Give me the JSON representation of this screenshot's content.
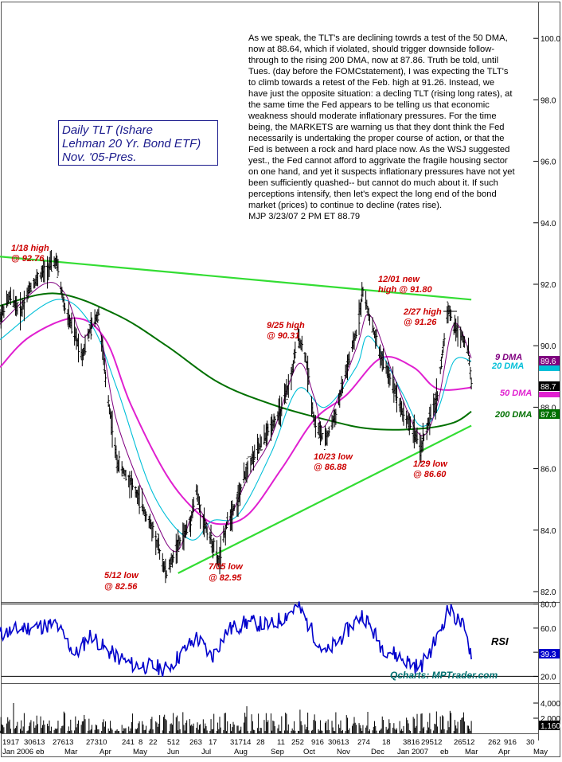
{
  "title_box": {
    "line1": "Daily TLT (Ishare",
    "line2": "Lehman 20 Yr. Bond ETF)",
    "line3": "Nov. '05-Pres."
  },
  "commentary": {
    "text": "As we speak, the TLT's are declining towrds a test of the 50 DMA, now at 88.64, which if violated, should trigger downside follow-through to the rising 200 DMA, now at 87.86. Truth be told, until Tues. (day before the FOMCstatement), I was expecting the TLT's to climb towards a retest of the Feb. high at 91.26. Instead, we have just the opposite situation: a decling TLT (rising long rates), at the same time the Fed appears to be telling us that economic weakness should moderate inflationary pressures. For the time being, the MARKETS are warning us that they dont think the Fed necessarily is undertaking the proper course of action, or that the Fed is between a rock and hard place now. As the WSJ suggested yest., the Fed cannot afford to aggrivate the fragile housing sector on one hand, and yet it suspects inflationary pressures have not yet been sufficiently quashed-- but cannot do much about it. If such perceptions intensify, then let's expect the long end of the bond market (prices) to continue to decline (rates rise).",
    "signature": "MJP  3/23/07 2  PM ET 88.79"
  },
  "credit": "Qcharts: MPTrader.com",
  "colors": {
    "price_bars": "#000000",
    "dma9": "#800080",
    "dma20": "#00bfd8",
    "dma50": "#e020d0",
    "dma200": "#007000",
    "trendline": "#33dd33",
    "rsi": "#0000cc",
    "volume": "#000000",
    "annotation": "#cc0000"
  },
  "chart_data": [
    {
      "type": "line",
      "role": "price",
      "y_ticks": [
        "82.0",
        "84.0",
        "86.0",
        "88.0",
        "90.0",
        "92.0",
        "94.0",
        "96.0",
        "98.0",
        "100.0"
      ],
      "ylim": [
        82,
        101
      ],
      "x_day_labels": [
        "1917",
        "30613",
        "27613",
        "27310",
        "241",
        "8",
        "22",
        "512",
        "263",
        "17",
        "31714",
        "28",
        "11",
        "252",
        "916",
        "30613",
        "274",
        "18",
        "3816",
        "29512",
        "26512",
        "262",
        "916",
        "30"
      ],
      "x_month_labels": [
        "Jan 2006",
        "eb",
        "Mar",
        "Apr",
        "May",
        "Jun",
        "Jul",
        "Aug",
        "Sep",
        "Oct",
        "Nov",
        "Dec",
        "Jan 2007",
        "eb",
        "Mar",
        "Apr",
        "May"
      ],
      "value_tags": {
        "dma9": "89.6",
        "dma20": "",
        "price": "88.7",
        "dma200": "87.8"
      },
      "ma_labels": {
        "dma9": "9 DMA",
        "dma20": "20 DMA",
        "dma50": "50 DMA",
        "dma200": "200 DMA"
      },
      "price_pivots": [
        [
          "2005-11-21",
          90.9
        ],
        [
          "2005-12-01",
          91.6
        ],
        [
          "2005-12-12",
          91.1
        ],
        [
          "2005-12-22",
          91.9
        ],
        [
          "2006-01-05",
          92.4
        ],
        [
          "2006-01-18",
          92.76
        ],
        [
          "2006-01-27",
          91.2
        ],
        [
          "2006-02-07",
          90.3
        ],
        [
          "2006-02-14",
          89.7
        ],
        [
          "2006-02-23",
          90.6
        ],
        [
          "2006-03-03",
          91.1
        ],
        [
          "2006-03-10",
          88.9
        ],
        [
          "2006-03-22",
          86.2
        ],
        [
          "2006-04-05",
          85.6
        ],
        [
          "2006-04-18",
          84.7
        ],
        [
          "2006-04-28",
          84.0
        ],
        [
          "2006-05-12",
          82.56
        ],
        [
          "2006-05-22",
          83.4
        ],
        [
          "2006-06-05",
          84.2
        ],
        [
          "2006-06-12",
          85.3
        ],
        [
          "2006-06-16",
          84.6
        ],
        [
          "2006-06-28",
          83.6
        ],
        [
          "2006-07-05",
          82.95
        ],
        [
          "2006-07-14",
          84.3
        ],
        [
          "2006-07-25",
          85.0
        ],
        [
          "2006-08-04",
          86.1
        ],
        [
          "2006-08-18",
          86.8
        ],
        [
          "2006-08-28",
          87.4
        ],
        [
          "2006-09-08",
          87.9
        ],
        [
          "2006-09-18",
          89.0
        ],
        [
          "2006-09-25",
          90.31
        ],
        [
          "2006-10-03",
          89.6
        ],
        [
          "2006-10-12",
          87.5
        ],
        [
          "2006-10-23",
          86.88
        ],
        [
          "2006-11-03",
          87.8
        ],
        [
          "2006-11-14",
          89.2
        ],
        [
          "2006-11-24",
          90.4
        ],
        [
          "2006-12-01",
          91.8
        ],
        [
          "2006-12-08",
          90.9
        ],
        [
          "2006-12-20",
          89.6
        ],
        [
          "2007-01-02",
          88.7
        ],
        [
          "2007-01-10",
          87.9
        ],
        [
          "2007-01-22",
          87.3
        ],
        [
          "2007-01-29",
          86.6
        ],
        [
          "2007-02-08",
          87.6
        ],
        [
          "2007-02-16",
          88.4
        ],
        [
          "2007-02-27",
          91.26
        ],
        [
          "2007-03-05",
          90.6
        ],
        [
          "2007-03-14",
          90.3
        ],
        [
          "2007-03-20",
          89.8
        ],
        [
          "2007-03-23",
          88.79
        ]
      ],
      "dma9": [
        [
          "2005-11-21",
          90.7
        ],
        [
          "2006-01-05",
          92.0
        ],
        [
          "2006-01-27",
          91.7
        ],
        [
          "2006-02-14",
          90.3
        ],
        [
          "2006-03-03",
          90.6
        ],
        [
          "2006-03-22",
          87.5
        ],
        [
          "2006-04-28",
          84.5
        ],
        [
          "2006-05-22",
          83.3
        ],
        [
          "2006-06-12",
          84.7
        ],
        [
          "2006-07-05",
          83.8
        ],
        [
          "2006-08-04",
          85.7
        ],
        [
          "2006-08-28",
          87.0
        ],
        [
          "2006-09-25",
          89.4
        ],
        [
          "2006-10-12",
          88.3
        ],
        [
          "2006-10-23",
          87.4
        ],
        [
          "2006-11-24",
          89.9
        ],
        [
          "2006-12-08",
          91.0
        ],
        [
          "2007-01-02",
          89.0
        ],
        [
          "2007-01-29",
          87.1
        ],
        [
          "2007-02-16",
          88.1
        ],
        [
          "2007-03-05",
          90.7
        ],
        [
          "2007-03-23",
          89.6
        ]
      ],
      "dma20": [
        [
          "2005-11-21",
          90.2
        ],
        [
          "2006-01-18",
          91.5
        ],
        [
          "2006-02-23",
          90.7
        ],
        [
          "2006-03-22",
          88.6
        ],
        [
          "2006-04-28",
          85.2
        ],
        [
          "2006-06-05",
          83.7
        ],
        [
          "2006-06-28",
          84.3
        ],
        [
          "2006-07-25",
          84.5
        ],
        [
          "2006-08-28",
          86.5
        ],
        [
          "2006-09-25",
          88.6
        ],
        [
          "2006-10-23",
          88.0
        ],
        [
          "2006-11-24",
          89.3
        ],
        [
          "2006-12-08",
          90.3
        ],
        [
          "2007-01-10",
          88.5
        ],
        [
          "2007-01-29",
          87.4
        ],
        [
          "2007-02-16",
          87.9
        ],
        [
          "2007-03-05",
          89.5
        ],
        [
          "2007-03-23",
          89.5
        ]
      ],
      "dma50": [
        [
          "2005-11-21",
          89.3
        ],
        [
          "2005-12-22",
          90.3
        ],
        [
          "2006-02-07",
          90.9
        ],
        [
          "2006-03-10",
          90.2
        ],
        [
          "2006-04-05",
          88.1
        ],
        [
          "2006-05-12",
          85.8
        ],
        [
          "2006-06-12",
          84.6
        ],
        [
          "2006-07-05",
          84.2
        ],
        [
          "2006-08-04",
          84.5
        ],
        [
          "2006-09-08",
          86.0
        ],
        [
          "2006-10-12",
          87.6
        ],
        [
          "2006-11-14",
          88.4
        ],
        [
          "2006-12-20",
          89.6
        ],
        [
          "2007-01-22",
          89.3
        ],
        [
          "2007-02-16",
          88.6
        ],
        [
          "2007-03-23",
          88.64
        ]
      ],
      "dma200": [
        [
          "2005-11-21",
          91.3
        ],
        [
          "2006-01-18",
          91.7
        ],
        [
          "2006-03-22",
          91.0
        ],
        [
          "2006-05-12",
          90.0
        ],
        [
          "2006-07-05",
          88.8
        ],
        [
          "2006-08-28",
          88.1
        ],
        [
          "2006-10-23",
          87.6
        ],
        [
          "2006-12-08",
          87.3
        ],
        [
          "2007-01-29",
          87.3
        ],
        [
          "2007-03-05",
          87.5
        ],
        [
          "2007-03-23",
          87.86
        ]
      ],
      "trendlines": [
        {
          "from": [
            "2005-11-21",
            92.9
          ],
          "to": [
            "2007-03-23",
            91.5
          ]
        },
        {
          "from": [
            "2006-05-24",
            82.6
          ],
          "to": [
            "2007-03-23",
            87.4
          ]
        }
      ],
      "annotations": [
        {
          "line1": "1/18 high",
          "line2": "@ 92.76"
        },
        {
          "line1": "5/12 low",
          "line2": "@ 82.56"
        },
        {
          "line1": "7/05 low",
          "line2": "@ 82.95"
        },
        {
          "line1": "9/25 high",
          "line2": "@ 90.31"
        },
        {
          "line1": "10/23 low",
          "line2": "@ 86.88"
        },
        {
          "line1": "12/01 new",
          "line2": "high @ 91.80"
        },
        {
          "line1": "2/27 high",
          "line2": "@ 91.26"
        },
        {
          "line1": "1/29 low",
          "line2": "@ 86.60"
        }
      ]
    },
    {
      "type": "line",
      "role": "rsi",
      "name": "RSI",
      "y_ticks": [
        "20.0",
        "40.0",
        "60.0",
        "80.0"
      ],
      "ylim": [
        15,
        85
      ],
      "value_tag": "39.3",
      "values_approx": [
        [
          "2005-11-21",
          55
        ],
        [
          "2005-12-15",
          60
        ],
        [
          "2006-01-18",
          63
        ],
        [
          "2006-02-07",
          38
        ],
        [
          "2006-02-23",
          55
        ],
        [
          "2006-03-10",
          42
        ],
        [
          "2006-04-05",
          30
        ],
        [
          "2006-04-28",
          28
        ],
        [
          "2006-05-12",
          26
        ],
        [
          "2006-06-12",
          52
        ],
        [
          "2006-06-28",
          36
        ],
        [
          "2006-07-14",
          58
        ],
        [
          "2006-08-04",
          65
        ],
        [
          "2006-08-28",
          62
        ],
        [
          "2006-09-25",
          78
        ],
        [
          "2006-10-23",
          38
        ],
        [
          "2006-11-24",
          66
        ],
        [
          "2006-12-01",
          72
        ],
        [
          "2006-12-20",
          45
        ],
        [
          "2007-01-10",
          35
        ],
        [
          "2007-01-29",
          27
        ],
        [
          "2007-02-16",
          52
        ],
        [
          "2007-02-27",
          76
        ],
        [
          "2007-03-14",
          62
        ],
        [
          "2007-03-23",
          39.3
        ]
      ]
    },
    {
      "type": "bar",
      "role": "volume",
      "y_ticks": [
        "2,000",
        "4,000"
      ],
      "value_tag": "1,160"
    }
  ]
}
